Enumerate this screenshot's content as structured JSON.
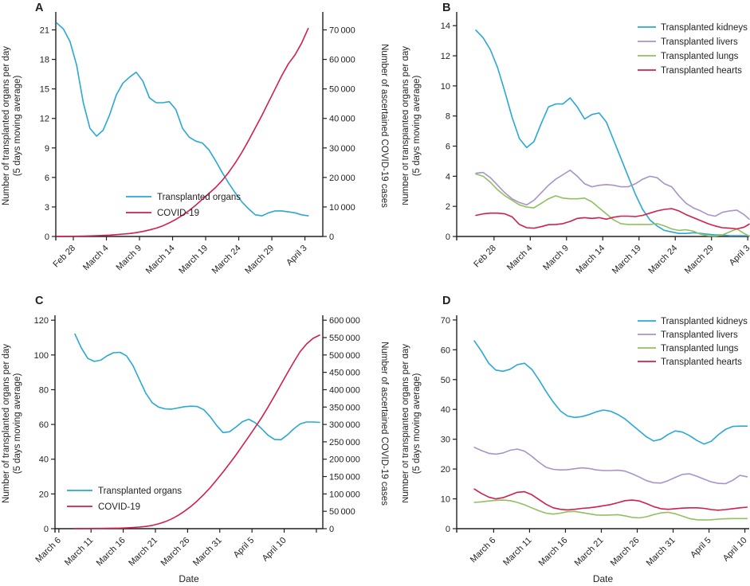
{
  "figure": {
    "description": "Four-panel line figure of transplanted organs per day and ascertained COVID-19 cases",
    "panel_letters": [
      "A",
      "B",
      "C",
      "D"
    ]
  },
  "colors": {
    "axis": "#231F20",
    "transplanted_organs": "#2AA8D5",
    "covid": "#D21F4C",
    "kidneys": "#2AA8D5",
    "livers": "#A893C9",
    "lungs": "#90C05F",
    "hearts": "#D21F4C"
  },
  "labels": {
    "y_left_line1": "Number of transplanted organs per day",
    "y_left_line2": "(5 days moving average)",
    "y_right": "Number of ascertained COVID-19 cases",
    "x_axis": "Date"
  },
  "chart_data": {
    "type": "line",
    "panels": [
      {
        "id": "A",
        "letter": "A",
        "x_tick_labels": [
          "Feb 28",
          "March 4",
          "March 9",
          "March 14",
          "March 19",
          "March 24",
          "March 29",
          "April 3"
        ],
        "x_tick_positions": [
          0,
          5,
          10,
          15,
          20,
          25,
          30,
          35
        ],
        "x_domain": [
          -2.65,
          37.7
        ],
        "xlabel": "",
        "ylabel_right": "Number of ascertained COVID-19 cases",
        "y_left": {
          "lim": [
            0,
            22.5
          ],
          "ticks": [
            0,
            3,
            6,
            9,
            12,
            15,
            18,
            21
          ],
          "labels": [
            "0",
            "3",
            "6",
            "9",
            "12",
            "15",
            "18",
            "21"
          ]
        },
        "y_right": {
          "lim": [
            0,
            75000
          ],
          "ticks": [
            0,
            10000,
            20000,
            30000,
            40000,
            50000,
            60000,
            70000
          ],
          "labels": [
            "0",
            "10 000",
            "20 000",
            "30 000",
            "40 000",
            "50 000",
            "60 000",
            "70 000"
          ]
        },
        "series": [
          {
            "name": "Transplanted organs",
            "color_key": "transplanted_organs",
            "axis": "left",
            "start_day": -2.5,
            "values": [
              21.7,
              21.1,
              19.8,
              17.4,
              13.6,
              11.0,
              10.2,
              10.8,
              12.4,
              14.4,
              15.6,
              16.2,
              16.7,
              15.8,
              14.1,
              13.6,
              13.6,
              13.7,
              12.9,
              11.0,
              10.1,
              9.7,
              9.5,
              8.8,
              7.7,
              6.5,
              5.4,
              4.4,
              3.5,
              2.8,
              2.2,
              2.1,
              2.4,
              2.6,
              2.6,
              2.5,
              2.4,
              2.2,
              2.1
            ]
          },
          {
            "name": "COVID-19",
            "color_key": "covid",
            "axis": "right",
            "start_day": -2.5,
            "values": [
              20,
              35,
              60,
              90,
              130,
              190,
              260,
              350,
              470,
              620,
              800,
              1000,
              1300,
              1700,
              2200,
              2800,
              3600,
              4600,
              5800,
              7200,
              8800,
              10600,
              12600,
              14600,
              16600,
              19000,
              21800,
              25000,
              28600,
              32600,
              36800,
              41000,
              45500,
              50000,
              54500,
              58500,
              61500,
              65500,
              70500
            ]
          }
        ]
      },
      {
        "id": "B",
        "letter": "B",
        "x_tick_labels": [
          "Feb 28",
          "March 4",
          "March 9",
          "March 14",
          "March 19",
          "March 24",
          "March 29",
          "April 3"
        ],
        "x_tick_positions": [
          0,
          5,
          10,
          15,
          20,
          25,
          30,
          35
        ],
        "x_domain": [
          -5.15,
          35.2
        ],
        "xlabel": "",
        "y_left": {
          "lim": [
            0,
            14.7
          ],
          "ticks": [
            0,
            2,
            4,
            6,
            8,
            10,
            12,
            14
          ],
          "labels": [
            "0",
            "2",
            "4",
            "6",
            "8",
            "10",
            "12",
            "14"
          ]
        },
        "series": [
          {
            "name": "Transplanted kidneys",
            "color_key": "kidneys",
            "axis": "left",
            "start_day": -2.5,
            "values": [
              13.7,
              13.2,
              12.4,
              11.2,
              9.6,
              7.9,
              6.5,
              5.9,
              6.3,
              7.5,
              8.6,
              8.8,
              8.8,
              9.2,
              8.6,
              7.8,
              8.1,
              8.2,
              7.6,
              6.4,
              5.2,
              4.0,
              2.8,
              1.8,
              1.1,
              0.7,
              0.4,
              0.3,
              0.2,
              0.2,
              0.25,
              0.2,
              0.15,
              0.1,
              0.1,
              0.05,
              0.05,
              0.05,
              0.05
            ]
          },
          {
            "name": "Transplanted livers",
            "color_key": "livers",
            "axis": "left",
            "start_day": -2.5,
            "values": [
              4.2,
              4.25,
              3.9,
              3.4,
              2.9,
              2.5,
              2.25,
              2.1,
              2.4,
              2.9,
              3.4,
              3.8,
              4.1,
              4.4,
              4.0,
              3.5,
              3.3,
              3.4,
              3.45,
              3.4,
              3.3,
              3.3,
              3.5,
              3.8,
              4.0,
              3.9,
              3.5,
              3.3,
              2.7,
              2.2,
              1.9,
              1.7,
              1.45,
              1.35,
              1.6,
              1.7,
              1.75,
              1.45,
              1.15
            ]
          },
          {
            "name": "Transplanted lungs",
            "color_key": "lungs",
            "axis": "left",
            "start_day": -2.5,
            "values": [
              4.15,
              4.0,
              3.6,
              3.1,
              2.7,
              2.4,
              2.1,
              1.95,
              1.9,
              2.2,
              2.5,
              2.7,
              2.55,
              2.5,
              2.5,
              2.55,
              2.3,
              1.9,
              1.5,
              1.1,
              0.85,
              0.8,
              0.8,
              0.8,
              0.8,
              0.85,
              0.7,
              0.5,
              0.4,
              0.45,
              0.35,
              0.15,
              0.05,
              0.02,
              0.1,
              0.3,
              0.5,
              0.2,
              0.02
            ]
          },
          {
            "name": "Transplanted hearts",
            "color_key": "hearts",
            "axis": "left",
            "start_day": -2.5,
            "values": [
              1.4,
              1.5,
              1.55,
              1.55,
              1.5,
              1.3,
              0.8,
              0.58,
              0.55,
              0.65,
              0.78,
              0.8,
              0.85,
              1.0,
              1.2,
              1.25,
              1.2,
              1.25,
              1.15,
              1.28,
              1.35,
              1.35,
              1.32,
              1.4,
              1.55,
              1.7,
              1.8,
              1.85,
              1.7,
              1.45,
              1.25,
              1.05,
              0.85,
              0.7,
              0.58,
              0.55,
              0.5,
              0.62,
              0.82
            ]
          }
        ]
      },
      {
        "id": "C",
        "letter": "C",
        "x_tick_labels": [
          "March 6",
          "March 11",
          "March 16",
          "March 21",
          "March 26",
          "March 31",
          "April 5",
          "April 10",
          ""
        ],
        "x_tick_positions": [
          0,
          5,
          10,
          15,
          20,
          25,
          30,
          35,
          40
        ],
        "x_domain": [
          -0.6,
          41.0
        ],
        "xlabel": "Date",
        "ylabel_right": "Number of ascertained COVID-19 cases",
        "y_left": {
          "lim": [
            0,
            121
          ],
          "ticks": [
            0,
            20,
            40,
            60,
            80,
            100,
            120
          ],
          "labels": [
            "0",
            "20",
            "40",
            "60",
            "80",
            "100",
            "120"
          ]
        },
        "y_right": {
          "lim": [
            0,
            605000
          ],
          "ticks": [
            0,
            50000,
            100000,
            150000,
            200000,
            250000,
            300000,
            350000,
            400000,
            450000,
            500000,
            550000,
            600000
          ],
          "labels": [
            "0",
            "50 000",
            "100 000",
            "150 000",
            "200 000",
            "250 000",
            "300 000",
            "350 000",
            "400 000",
            "450 000",
            "500 000",
            "550 000",
            "600 000"
          ]
        },
        "series": [
          {
            "name": "Transplanted organs",
            "color_key": "transplanted_organs",
            "axis": "left",
            "start_day": 2.5,
            "values": [
              112,
              104,
              98,
              96.3,
              97,
              99.5,
              101.3,
              101.5,
              99.5,
              94,
              86,
              78,
              72.5,
              70,
              69,
              68.8,
              69.5,
              70.2,
              70.5,
              70.3,
              68.5,
              64.5,
              59.5,
              55.3,
              55.8,
              58.5,
              61.5,
              63,
              61,
              57.5,
              53.8,
              51.4,
              51.2,
              54,
              57.5,
              60.3,
              61.4,
              61.4,
              61.2
            ]
          },
          {
            "name": "COVID-19",
            "color_key": "covid",
            "axis": "right",
            "start_day": 2.5,
            "values": [
              300,
              400,
              500,
              650,
              800,
              1000,
              1300,
              1700,
              2300,
              3200,
              4500,
              6500,
              9500,
              14000,
              20000,
              28000,
              38000,
              50000,
              64000,
              80000,
              98000,
              118000,
              140000,
              163000,
              187000,
              212000,
              238000,
              265000,
              292000,
              320000,
              350000,
              382000,
              415000,
              448000,
              480000,
              510000,
              532000,
              548000,
              557000
            ]
          }
        ]
      },
      {
        "id": "D",
        "letter": "D",
        "x_tick_labels": [
          "March 6",
          "March 11",
          "March 16",
          "March 21",
          "March 26",
          "March 31",
          "April 5",
          "April 10"
        ],
        "x_tick_positions": [
          0,
          5,
          10,
          15,
          20,
          25,
          30,
          35
        ],
        "x_domain": [
          -5.15,
          35.6
        ],
        "xlabel": "Date",
        "y_left": {
          "lim": [
            0,
            70.5
          ],
          "ticks": [
            0,
            10,
            20,
            30,
            40,
            50,
            60,
            70
          ],
          "labels": [
            "0",
            "10",
            "20",
            "30",
            "40",
            "50",
            "60",
            "70"
          ]
        },
        "series": [
          {
            "name": "Transplanted kidneys",
            "color_key": "kidneys",
            "axis": "left",
            "start_day": -2.7,
            "values": [
              63,
              59.5,
              55.5,
              53.2,
              52.8,
              53.5,
              55,
              55.5,
              53.5,
              50,
              46,
              42.5,
              39.5,
              37.8,
              37.3,
              37.6,
              38.3,
              39.2,
              39.8,
              39.4,
              38.3,
              36.8,
              34.8,
              32.8,
              30.8,
              29.4,
              30,
              31.6,
              32.8,
              32.4,
              31.2,
              29.6,
              28.4,
              29.3,
              31.5,
              33.3,
              34.3,
              34.4,
              34.4
            ]
          },
          {
            "name": "Transplanted livers",
            "color_key": "livers",
            "axis": "left",
            "start_day": -2.7,
            "values": [
              27.3,
              26.2,
              25.3,
              25,
              25.4,
              26.3,
              26.7,
              26,
              24.3,
              22.3,
              20.6,
              19.9,
              19.7,
              19.8,
              20.1,
              20.4,
              20.2,
              19.7,
              19.5,
              19.5,
              19.6,
              19.3,
              18.4,
              17.3,
              16.1,
              15.4,
              15.3,
              16.1,
              17.2,
              18.2,
              18.4,
              17.6,
              16.6,
              15.7,
              15.2,
              15.1,
              16.2,
              17.9,
              17.4
            ]
          },
          {
            "name": "Transplanted lungs",
            "color_key": "lungs",
            "axis": "left",
            "start_day": -2.7,
            "values": [
              8.8,
              9,
              9.3,
              9.5,
              9.6,
              9.4,
              8.8,
              8,
              7,
              6,
              5.2,
              4.9,
              5.2,
              5.7,
              5.8,
              5.4,
              5,
              4.6,
              4.5,
              4.6,
              4.7,
              4.3,
              3.8,
              3.6,
              4,
              4.7,
              5.3,
              5.5,
              5,
              4.2,
              3.4,
              3,
              2.9,
              3,
              3.2,
              3.3,
              3.4,
              3.4,
              3.4
            ]
          },
          {
            "name": "Transplanted hearts",
            "color_key": "hearts",
            "axis": "left",
            "start_day": -2.7,
            "values": [
              13.3,
              11.8,
              10.6,
              10,
              10.4,
              11.3,
              12.2,
              12.4,
              11.4,
              9.8,
              8.2,
              7,
              6.5,
              6.3,
              6.5,
              6.8,
              7,
              7.3,
              7.7,
              8.1,
              8.7,
              9.4,
              9.6,
              9.3,
              8.4,
              7.4,
              6.7,
              6.5,
              6.7,
              6.9,
              7,
              7,
              6.8,
              6.4,
              6.2,
              6.4,
              6.7,
              7,
              7.2
            ]
          }
        ]
      }
    ]
  }
}
